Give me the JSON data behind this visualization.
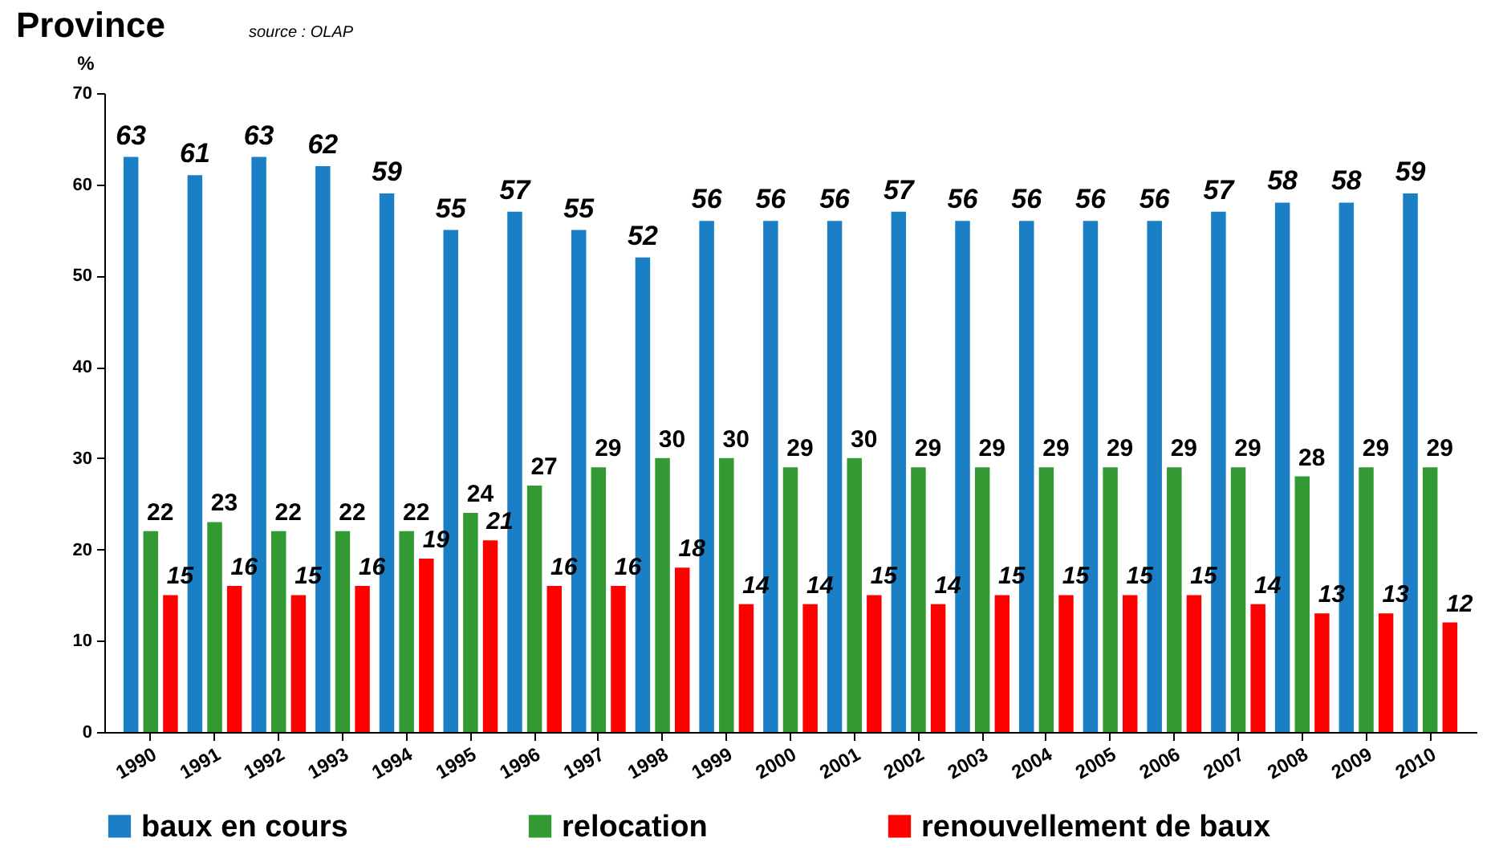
{
  "chart_data": {
    "type": "bar",
    "title": "Province",
    "annotations": [
      "source : OLAP"
    ],
    "ylabel": "%",
    "categories": [
      "1990",
      "1991",
      "1992",
      "1993",
      "1994",
      "1995",
      "1996",
      "1997",
      "1998",
      "1999",
      "2000",
      "2001",
      "2002",
      "2003",
      "2004",
      "2005",
      "2006",
      "2007",
      "2008",
      "2009",
      "2010"
    ],
    "series": [
      {
        "name": "baux en cours",
        "color": "#1a7fc4",
        "values": [
          63,
          61,
          63,
          62,
          59,
          55,
          57,
          55,
          52,
          56,
          56,
          56,
          57,
          56,
          56,
          56,
          56,
          57,
          58,
          58,
          59
        ]
      },
      {
        "name": "relocation",
        "color": "#339933",
        "values": [
          22,
          23,
          22,
          22,
          22,
          24,
          27,
          29,
          30,
          30,
          29,
          30,
          29,
          29,
          29,
          29,
          29,
          29,
          28,
          29,
          29
        ]
      },
      {
        "name": "renouvellement de baux",
        "color": "#ff0000",
        "values": [
          15,
          16,
          15,
          16,
          19,
          21,
          16,
          16,
          18,
          14,
          14,
          15,
          14,
          15,
          15,
          15,
          15,
          14,
          13,
          13,
          12
        ]
      }
    ],
    "ylim": [
      0,
      70
    ],
    "yticks": [
      0,
      10,
      20,
      30,
      40,
      50,
      60,
      70
    ],
    "grid": false,
    "legend": "bottom",
    "data_labels": true
  }
}
